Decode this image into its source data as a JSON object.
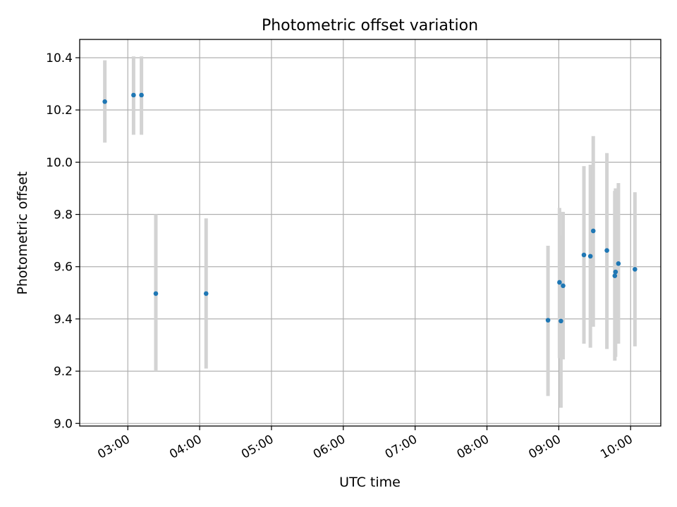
{
  "chart_data": {
    "type": "scatter",
    "title": "Photometric offset variation",
    "xlabel": "UTC time",
    "ylabel": "Photometric offset",
    "x_unit": "hours (UTC)",
    "xlim": [
      2.33,
      10.42
    ],
    "ylim": [
      8.99,
      10.47
    ],
    "x_ticks": [
      3,
      4,
      5,
      6,
      7,
      8,
      9,
      10
    ],
    "x_tick_labels": [
      "03:00",
      "04:00",
      "05:00",
      "06:00",
      "07:00",
      "08:00",
      "09:00",
      "10:00"
    ],
    "y_ticks": [
      9.0,
      9.2,
      9.4,
      9.6,
      9.8,
      10.0,
      10.2,
      10.4
    ],
    "y_tick_labels": [
      "9.0",
      "9.2",
      "9.4",
      "9.6",
      "9.8",
      "10.0",
      "10.2",
      "10.4"
    ],
    "grid": true,
    "series": [
      {
        "marker_color": "#1f77b4",
        "errorbar_color": "#d3d3d3",
        "points": [
          {
            "x": 2.68,
            "y": 10.232,
            "ylo": 10.075,
            "yhi": 10.39
          },
          {
            "x": 3.08,
            "y": 10.257,
            "ylo": 10.105,
            "yhi": 10.405
          },
          {
            "x": 3.19,
            "y": 10.257,
            "ylo": 10.105,
            "yhi": 10.405
          },
          {
            "x": 3.39,
            "y": 9.497,
            "ylo": 9.2,
            "yhi": 9.8
          },
          {
            "x": 4.09,
            "y": 9.497,
            "ylo": 9.21,
            "yhi": 9.785
          },
          {
            "x": 8.85,
            "y": 9.395,
            "ylo": 9.105,
            "yhi": 9.68
          },
          {
            "x": 9.01,
            "y": 9.54,
            "ylo": 9.25,
            "yhi": 9.825
          },
          {
            "x": 9.03,
            "y": 9.392,
            "ylo": 9.06,
            "yhi": 9.72
          },
          {
            "x": 9.06,
            "y": 9.527,
            "ylo": 9.245,
            "yhi": 9.81
          },
          {
            "x": 9.35,
            "y": 9.645,
            "ylo": 9.305,
            "yhi": 9.985
          },
          {
            "x": 9.44,
            "y": 9.64,
            "ylo": 9.29,
            "yhi": 9.99
          },
          {
            "x": 9.48,
            "y": 9.737,
            "ylo": 9.37,
            "yhi": 10.1
          },
          {
            "x": 9.67,
            "y": 9.662,
            "ylo": 9.285,
            "yhi": 10.035
          },
          {
            "x": 9.78,
            "y": 9.565,
            "ylo": 9.24,
            "yhi": 9.89
          },
          {
            "x": 9.79,
            "y": 9.58,
            "ylo": 9.255,
            "yhi": 9.9
          },
          {
            "x": 9.83,
            "y": 9.612,
            "ylo": 9.305,
            "yhi": 9.92
          },
          {
            "x": 10.06,
            "y": 9.59,
            "ylo": 9.295,
            "yhi": 9.885
          }
        ]
      }
    ]
  }
}
